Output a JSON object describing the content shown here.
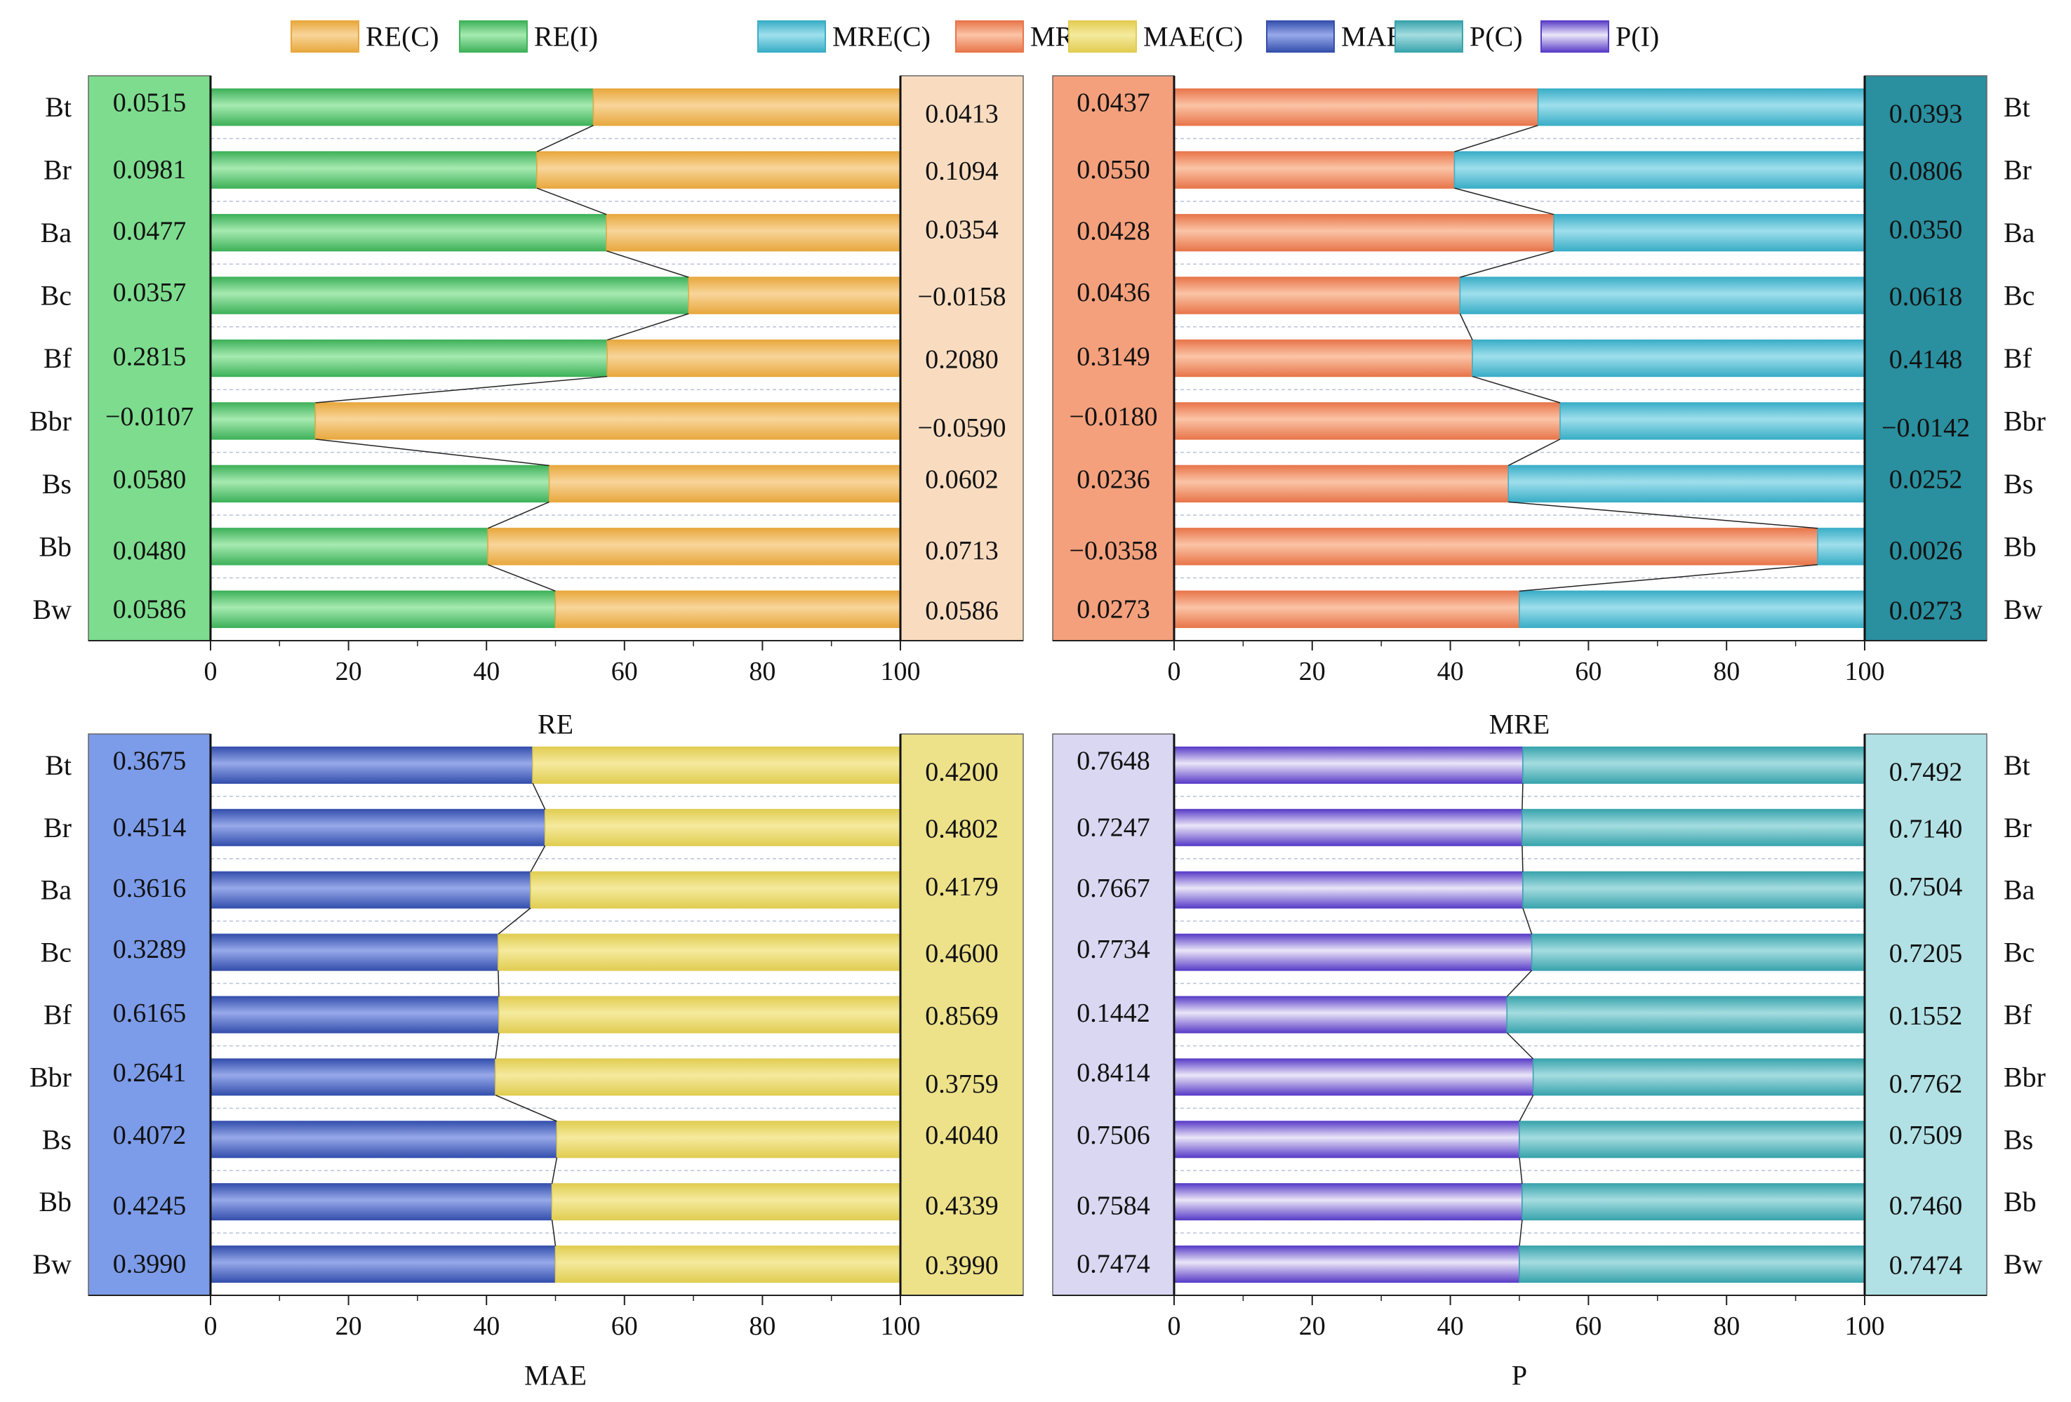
{
  "legend": [
    {
      "label": "RE(C)",
      "color": "#e8a83e"
    },
    {
      "label": "RE(I)",
      "color": "#3fb25a"
    },
    {
      "label": "MRE(C)",
      "color": "#3aaec7"
    },
    {
      "label": "MRE(I)",
      "color": "#e8764b"
    },
    {
      "label": "MAE(C)",
      "color": "#e1cd52"
    },
    {
      "label": "MAE(I)",
      "color": "#3550ad"
    },
    {
      "label": "P(C)",
      "color": "#3aa4ad"
    },
    {
      "label": "P(I)",
      "color": "#5a3ec8"
    }
  ],
  "chart_data": [
    {
      "type": "bar",
      "title": "RE",
      "xlabel": "RE",
      "xlim": [
        0,
        100
      ],
      "xticks": [
        "0",
        "20",
        "40",
        "60",
        "80",
        "100"
      ],
      "categories": [
        "Bt",
        "Br",
        "Ba",
        "Bc",
        "Bf",
        "Bbr",
        "Bs",
        "Bb",
        "Bw"
      ],
      "series": [
        {
          "name": "RE(I)",
          "values": [
            55.5,
            47.3,
            57.4,
            69.3,
            57.5,
            15.2,
            49.1,
            40.2,
            50.0
          ],
          "color": "#3fb25a",
          "color_light": "#a6eab1"
        },
        {
          "name": "RE(C)",
          "values": [
            44.5,
            52.7,
            42.6,
            30.7,
            42.5,
            84.8,
            50.9,
            59.8,
            50.0
          ],
          "color": "#e8a83e",
          "color_light": "#f8d59a"
        }
      ],
      "values_I": [
        "0.0515",
        "0.0981",
        "0.0477",
        "0.0357",
        "0.2815",
        "−0.0107",
        "0.0580",
        "0.0480",
        "0.0586"
      ],
      "values_C": [
        "0.0413",
        "0.1094",
        "0.0354",
        "−0.0158",
        "0.2080",
        "−0.0590",
        "0.0602",
        "0.0713",
        "0.0586"
      ],
      "box_I_color": "#7ddc8e",
      "box_C_color": "#f9dcc0",
      "label_side": "left"
    },
    {
      "type": "bar",
      "title": "MRE",
      "xlabel": "MRE",
      "xlim": [
        0,
        100
      ],
      "xticks": [
        "0",
        "20",
        "40",
        "60",
        "80",
        "100"
      ],
      "categories": [
        "Bt",
        "Br",
        "Ba",
        "Bc",
        "Bf",
        "Bbr",
        "Bs",
        "Bb",
        "Bw"
      ],
      "series": [
        {
          "name": "MRE(I)",
          "values": [
            52.7,
            40.6,
            55.0,
            41.4,
            43.2,
            55.9,
            48.4,
            93.2,
            50.0
          ],
          "color": "#e8764b",
          "color_light": "#fbc4a6"
        },
        {
          "name": "MRE(C)",
          "values": [
            47.3,
            59.4,
            45.0,
            58.6,
            56.8,
            44.1,
            51.6,
            6.8,
            50.0
          ],
          "color": "#3aaec7",
          "color_light": "#9fdfec"
        }
      ],
      "values_I": [
        "0.0437",
        "0.0550",
        "0.0428",
        "0.0436",
        "0.3149",
        "−0.0180",
        "0.0236",
        "−0.0358",
        "0.0273"
      ],
      "values_C": [
        "0.0393",
        "0.0806",
        "0.0350",
        "0.0618",
        "0.4148",
        "−0.0142",
        "0.0252",
        "0.0026",
        "0.0273"
      ],
      "box_I_color": "#f4a07c",
      "box_C_color": "#2a8f9e",
      "label_side": "right"
    },
    {
      "type": "bar",
      "title": "MAE",
      "xlabel": "MAE",
      "xlim": [
        0,
        100
      ],
      "xticks": [
        "0",
        "20",
        "40",
        "60",
        "80",
        "100"
      ],
      "categories": [
        "Bt",
        "Br",
        "Ba",
        "Bc",
        "Bf",
        "Bbr",
        "Bs",
        "Bb",
        "Bw"
      ],
      "series": [
        {
          "name": "MAE(I)",
          "values": [
            46.7,
            48.5,
            46.4,
            41.7,
            41.8,
            41.3,
            50.2,
            49.5,
            50.0
          ],
          "color": "#3550ad",
          "color_light": "#97a9ea"
        },
        {
          "name": "MAE(C)",
          "values": [
            53.3,
            51.5,
            53.6,
            58.3,
            58.2,
            58.7,
            49.8,
            50.5,
            50.0
          ],
          "color": "#e1cd52",
          "color_light": "#f5ea9e"
        }
      ],
      "values_I": [
        "0.3675",
        "0.4514",
        "0.3616",
        "0.3289",
        "0.6165",
        "0.2641",
        "0.4072",
        "0.4245",
        "0.3990"
      ],
      "values_C": [
        "0.4200",
        "0.4802",
        "0.4179",
        "0.4600",
        "0.8569",
        "0.3759",
        "0.4040",
        "0.4339",
        "0.3990"
      ],
      "box_I_color": "#7c9be8",
      "box_C_color": "#ede18a",
      "label_side": "left"
    },
    {
      "type": "bar",
      "title": "P",
      "xlabel": "P",
      "xlim": [
        0,
        100
      ],
      "xticks": [
        "0",
        "20",
        "40",
        "60",
        "80",
        "100"
      ],
      "categories": [
        "Bt",
        "Br",
        "Ba",
        "Bc",
        "Bf",
        "Bbr",
        "Bs",
        "Bb",
        "Bw"
      ],
      "series": [
        {
          "name": "P(I)",
          "values": [
            50.5,
            50.4,
            50.5,
            51.8,
            48.2,
            52.0,
            50.0,
            50.4,
            50.0
          ],
          "color": "#5a3ec8",
          "color_light": "#ebe6f8"
        },
        {
          "name": "P(C)",
          "values": [
            49.5,
            49.6,
            49.5,
            48.2,
            51.8,
            48.0,
            50.0,
            49.6,
            50.0
          ],
          "color": "#3aa4ad",
          "color_light": "#a4dde0"
        }
      ],
      "values_I": [
        "0.7648",
        "0.7247",
        "0.7667",
        "0.7734",
        "0.1442",
        "0.8414",
        "0.7506",
        "0.7584",
        "0.7474"
      ],
      "values_C": [
        "0.7492",
        "0.7140",
        "0.7504",
        "0.7205",
        "0.1552",
        "0.7762",
        "0.7509",
        "0.7460",
        "0.7474"
      ],
      "box_I_color": "#d9d7f1",
      "box_C_color": "#b2e1e5",
      "label_side": "right"
    }
  ]
}
